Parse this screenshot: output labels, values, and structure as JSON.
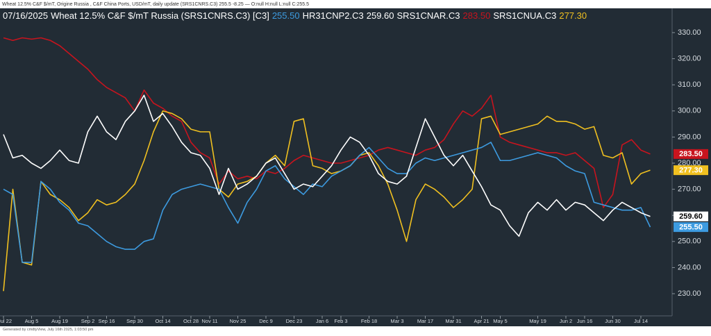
{
  "header": "Wheat 12.5%  C&F $/mT, Origine Russia , C&F China Ports, USD/mT, daily update (SRS1CNRS.C3) 255.5 -8.25 — O:null H:null L:null C:255.5",
  "footer": "Generated by cmdtyView, July 16th 2025, 1:03:50 pm",
  "chart_data": {
    "type": "line",
    "title": "07/16/2025",
    "categories": [
      "Jul 22",
      null,
      null,
      "Aug 5",
      null,
      null,
      "Aug 19",
      null,
      null,
      "Sep 2",
      null,
      "Sep 16",
      null,
      null,
      "Sep 30",
      null,
      null,
      "Oct 14",
      null,
      null,
      "Oct 28",
      null,
      "Nov 11",
      null,
      null,
      "Nov 25",
      null,
      null,
      "Dec 9",
      null,
      null,
      "Dec 23",
      null,
      null,
      "Jan 6",
      null,
      "Feb 3",
      null,
      null,
      "Feb 18",
      null,
      null,
      "Mar 3",
      null,
      null,
      "Mar 17",
      null,
      null,
      "Mar 31",
      null,
      null,
      "Apr 21",
      null,
      "May 5",
      null,
      null,
      null,
      "May 19",
      null,
      null,
      "Jun 2",
      null,
      "Jun 16",
      null,
      null,
      "Jun 30",
      null,
      null,
      "Jul 14",
      null
    ],
    "ylim": [
      221.5,
      338.5
    ],
    "yticks": [
      {
        "value": 230,
        "label": "230.00"
      },
      {
        "value": 240,
        "label": "240.00"
      },
      {
        "value": 250,
        "label": "250.00"
      },
      {
        "value": 260,
        "label": "260.00"
      },
      {
        "value": 270,
        "label": "270.00"
      },
      {
        "value": 280,
        "label": "280.00"
      },
      {
        "value": 290,
        "label": "290.00"
      },
      {
        "value": 300,
        "label": "300.00"
      },
      {
        "value": 310,
        "label": "310.00"
      },
      {
        "value": 320,
        "label": "320.00"
      },
      {
        "value": 330,
        "label": "330.00"
      }
    ],
    "grid": false,
    "series": [
      {
        "name": "Wheat 12.5% C&F $/mT Russia (SRS1CNRS.C3) [C3]",
        "color": "#3d9be0",
        "values": [
          270,
          268,
          242,
          242,
          273,
          270,
          265,
          262,
          257,
          256,
          253,
          250,
          248,
          247,
          247,
          250,
          251,
          262,
          268,
          270,
          271,
          272,
          271,
          270,
          263,
          257,
          265,
          270,
          277,
          279,
          274,
          271,
          268,
          272,
          271,
          275,
          277,
          279,
          283,
          286,
          282,
          278,
          276,
          276,
          280,
          282,
          281,
          282,
          283,
          284,
          285,
          286,
          288,
          281,
          281,
          282,
          283,
          284,
          283,
          282,
          279,
          277,
          276,
          265,
          264,
          263,
          262,
          262,
          263,
          255.5
        ],
        "value_labels": [
          null,
          null,
          null,
          null,
          null,
          null,
          null,
          null,
          null,
          null,
          null,
          null,
          null,
          null,
          null,
          null,
          null,
          null,
          null,
          null,
          null,
          null,
          null,
          null,
          null,
          null,
          null,
          null,
          null,
          null,
          null,
          null,
          null,
          null,
          null,
          null,
          null,
          null,
          null,
          null,
          null,
          null,
          null,
          null,
          null,
          null,
          null,
          null,
          null,
          null,
          null,
          null,
          null,
          null,
          null,
          null,
          null,
          null,
          null,
          null,
          null,
          null,
          null,
          null,
          null,
          null,
          null,
          null,
          null,
          "255.50"
        ]
      },
      {
        "name": "HR31CNP2.C3",
        "color": "#ffffff",
        "values": [
          291,
          282,
          283,
          280,
          278,
          281,
          285,
          281,
          280,
          292,
          298,
          292,
          289,
          296,
          300,
          306,
          296,
          299,
          294,
          288,
          284,
          283,
          278,
          268,
          278,
          270,
          272,
          275,
          280,
          282,
          276,
          270,
          272,
          271,
          275,
          279,
          285,
          290,
          288,
          283,
          276,
          273,
          272,
          275,
          286,
          297,
          290,
          283,
          279,
          283,
          277,
          271,
          264,
          262,
          256,
          252,
          261,
          265,
          262,
          266,
          262,
          265,
          264,
          261,
          258,
          262,
          265,
          263,
          261,
          259.6
        ],
        "value_labels": [
          null,
          null,
          null,
          null,
          null,
          null,
          null,
          null,
          null,
          null,
          null,
          null,
          null,
          null,
          null,
          null,
          null,
          null,
          null,
          null,
          null,
          null,
          null,
          null,
          null,
          null,
          null,
          null,
          null,
          null,
          null,
          null,
          null,
          null,
          null,
          null,
          null,
          null,
          null,
          null,
          null,
          null,
          null,
          null,
          null,
          null,
          null,
          null,
          null,
          null,
          null,
          null,
          null,
          null,
          null,
          null,
          null,
          null,
          null,
          null,
          null,
          null,
          null,
          null,
          null,
          null,
          null,
          null,
          null,
          "259.60"
        ]
      },
      {
        "name": "SRS1CNAR.C3",
        "color": "#c8141e",
        "values": [
          328,
          327,
          328,
          327.5,
          328,
          327,
          325,
          322,
          319,
          316,
          312,
          309,
          307,
          305,
          300,
          308,
          303,
          301,
          298,
          296,
          288,
          284,
          282,
          272,
          277,
          274,
          275,
          274,
          277,
          276,
          278,
          281,
          283,
          282,
          281,
          280,
          280,
          281,
          282,
          283,
          285,
          286,
          285,
          284,
          283,
          285,
          286,
          289,
          295,
          300,
          298,
          301,
          306,
          290,
          288,
          287,
          286,
          285,
          284,
          284,
          283,
          284,
          281,
          278,
          263,
          268,
          287,
          289,
          285,
          283.5
        ],
        "value_labels": [
          null,
          null,
          null,
          null,
          null,
          null,
          null,
          null,
          null,
          null,
          null,
          null,
          null,
          null,
          null,
          null,
          null,
          null,
          null,
          null,
          null,
          null,
          null,
          null,
          null,
          null,
          null,
          null,
          null,
          null,
          null,
          null,
          null,
          null,
          null,
          null,
          null,
          null,
          null,
          null,
          null,
          null,
          null,
          null,
          null,
          null,
          null,
          null,
          null,
          null,
          null,
          null,
          null,
          null,
          null,
          null,
          null,
          null,
          null,
          null,
          null,
          null,
          null,
          null,
          null,
          null,
          null,
          null,
          null,
          "283.50"
        ]
      },
      {
        "name": "SRS1CNUA.C3",
        "color": "#f0c020",
        "values": [
          231,
          270,
          242,
          241,
          273,
          268,
          266,
          263,
          258,
          261,
          266,
          264,
          265,
          268,
          272,
          281,
          292,
          300,
          299,
          297,
          293,
          292,
          292,
          270,
          267,
          272,
          273,
          275,
          280,
          283,
          279,
          296,
          297,
          279,
          278,
          276,
          277,
          279,
          283,
          284,
          279,
          272,
          262,
          250,
          266,
          272,
          270,
          267,
          263,
          266,
          270,
          297,
          298,
          291,
          292,
          293,
          294,
          295,
          298,
          296,
          296,
          295,
          293,
          294,
          283,
          282,
          284,
          272,
          276,
          277.3
        ],
        "value_labels": [
          null,
          null,
          null,
          null,
          null,
          null,
          null,
          null,
          null,
          null,
          null,
          null,
          null,
          null,
          null,
          null,
          null,
          null,
          null,
          null,
          null,
          null,
          null,
          null,
          null,
          null,
          null,
          null,
          null,
          null,
          null,
          null,
          null,
          null,
          null,
          null,
          null,
          null,
          null,
          null,
          null,
          null,
          null,
          null,
          null,
          null,
          null,
          null,
          null,
          null,
          null,
          null,
          null,
          null,
          null,
          null,
          null,
          null,
          null,
          null,
          null,
          null,
          null,
          null,
          null,
          null,
          null,
          null,
          null,
          "277.30"
        ]
      }
    ]
  }
}
